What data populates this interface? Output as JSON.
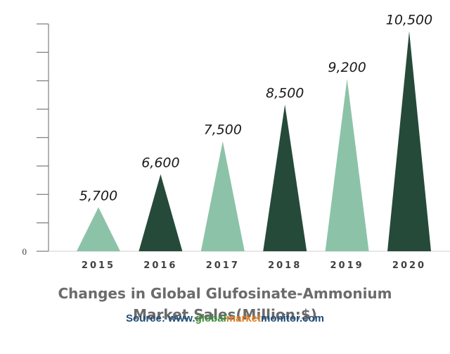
{
  "chart_data": {
    "type": "bar",
    "mark": "triangle",
    "categories": [
      "2015",
      "2016",
      "2017",
      "2018",
      "2019",
      "2020"
    ],
    "values": [
      5700,
      6600,
      7500,
      8500,
      9200,
      10500
    ],
    "value_labels": [
      "5,700",
      "6,600",
      "7,500",
      "8,500",
      "9,200",
      "10,500"
    ],
    "title_lines": [
      "Changes in Global Glufosinate-Ammonium",
      "Market Sales(Million:$)"
    ],
    "ylabel": "",
    "xlabel": "",
    "y_tick_label": "0",
    "ylim": [
      4500,
      10700
    ],
    "y_ticks": 9,
    "grid": false,
    "legend": "none",
    "colors": [
      "#8cc3a8",
      "#264a3a",
      "#8cc3a8",
      "#264a3a",
      "#8cc3a8",
      "#264a3a"
    ]
  },
  "source": {
    "prefix": "Source: www.",
    "part_global": "global",
    "part_market": "market",
    "part_monitor": "monitor",
    "suffix": ".com"
  }
}
